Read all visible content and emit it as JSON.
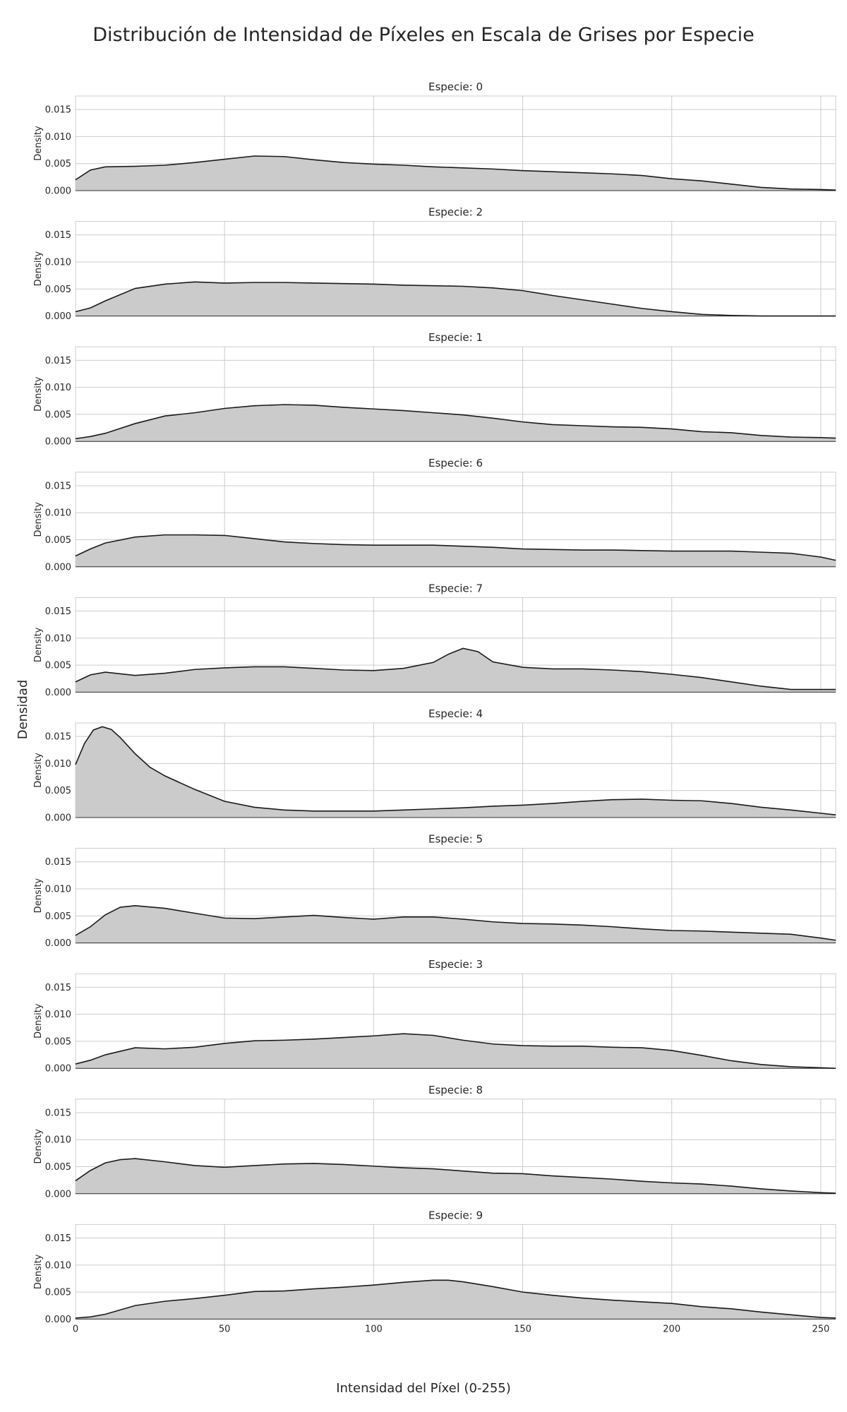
{
  "figure": {
    "title": "Distribución de Intensidad de Píxeles en Escala de Grises por Especie",
    "xlabel": "Intensidad del Píxel (0-255)",
    "ylabel": "Densidad",
    "panel_ylabel": "Density",
    "panel_title_prefix": "Especie: "
  },
  "chart_data": {
    "type": "area",
    "xlim": [
      0,
      255
    ],
    "ylim": [
      0,
      0.0175
    ],
    "x_ticks": [
      0,
      50,
      100,
      150,
      200,
      250
    ],
    "y_ticks": [
      0.0,
      0.005,
      0.01,
      0.015
    ],
    "y_tick_labels": [
      "0.000",
      "0.005",
      "0.010",
      "0.015"
    ],
    "grid": true,
    "fill_color": "#cbcbcb",
    "line_color": "#1a1a1a",
    "series": [
      {
        "species": "0",
        "x": [
          0,
          5,
          10,
          20,
          30,
          40,
          50,
          60,
          70,
          80,
          90,
          100,
          110,
          120,
          130,
          140,
          150,
          160,
          170,
          180,
          190,
          200,
          210,
          220,
          230,
          240,
          250,
          255
        ],
        "y": [
          0.002,
          0.0038,
          0.0044,
          0.0045,
          0.0047,
          0.0052,
          0.0058,
          0.0064,
          0.0063,
          0.0057,
          0.0052,
          0.0049,
          0.0047,
          0.0044,
          0.0042,
          0.004,
          0.0037,
          0.0035,
          0.0033,
          0.0031,
          0.0028,
          0.0022,
          0.0018,
          0.0012,
          0.0006,
          0.0003,
          0.0002,
          0.0001
        ]
      },
      {
        "species": "2",
        "x": [
          0,
          5,
          10,
          20,
          30,
          40,
          50,
          60,
          70,
          80,
          90,
          100,
          110,
          120,
          130,
          140,
          150,
          160,
          170,
          180,
          190,
          200,
          210,
          220,
          230,
          240,
          250,
          255
        ],
        "y": [
          0.0008,
          0.0015,
          0.0028,
          0.0051,
          0.0059,
          0.0063,
          0.0061,
          0.0062,
          0.0062,
          0.0061,
          0.006,
          0.0059,
          0.0057,
          0.0056,
          0.0055,
          0.0052,
          0.0047,
          0.0038,
          0.003,
          0.0022,
          0.0014,
          0.0008,
          0.0003,
          0.0001,
          0.0,
          0.0,
          0.0,
          0.0
        ]
      },
      {
        "species": "1",
        "x": [
          0,
          5,
          10,
          20,
          30,
          40,
          50,
          60,
          70,
          80,
          90,
          100,
          110,
          120,
          130,
          140,
          150,
          160,
          170,
          180,
          190,
          200,
          210,
          220,
          230,
          240,
          250,
          255
        ],
        "y": [
          0.0005,
          0.0009,
          0.0015,
          0.0033,
          0.0047,
          0.0053,
          0.0061,
          0.0066,
          0.0068,
          0.0067,
          0.0063,
          0.006,
          0.0057,
          0.0053,
          0.0049,
          0.0043,
          0.0036,
          0.0031,
          0.0029,
          0.0027,
          0.0026,
          0.0023,
          0.0018,
          0.0016,
          0.0011,
          0.0008,
          0.0007,
          0.0006
        ]
      },
      {
        "species": "6",
        "x": [
          0,
          5,
          10,
          20,
          30,
          40,
          50,
          60,
          70,
          80,
          90,
          100,
          110,
          120,
          130,
          140,
          150,
          160,
          170,
          180,
          190,
          200,
          210,
          220,
          230,
          240,
          250,
          255
        ],
        "y": [
          0.002,
          0.0033,
          0.0044,
          0.0055,
          0.0059,
          0.0059,
          0.0058,
          0.0052,
          0.0046,
          0.0043,
          0.0041,
          0.004,
          0.004,
          0.004,
          0.0038,
          0.0036,
          0.0033,
          0.0032,
          0.0031,
          0.0031,
          0.003,
          0.0029,
          0.0029,
          0.0029,
          0.0027,
          0.0025,
          0.0018,
          0.0012
        ]
      },
      {
        "species": "7",
        "x": [
          0,
          5,
          10,
          20,
          30,
          40,
          50,
          60,
          70,
          80,
          90,
          100,
          110,
          120,
          125,
          130,
          135,
          140,
          150,
          160,
          170,
          180,
          190,
          200,
          210,
          220,
          230,
          240,
          250,
          255
        ],
        "y": [
          0.0019,
          0.0032,
          0.0037,
          0.0031,
          0.0035,
          0.0042,
          0.0045,
          0.0047,
          0.0047,
          0.0044,
          0.0041,
          0.004,
          0.0044,
          0.0055,
          0.007,
          0.0081,
          0.0075,
          0.0056,
          0.0046,
          0.0043,
          0.0043,
          0.0041,
          0.0038,
          0.0033,
          0.0027,
          0.0019,
          0.0011,
          0.0005,
          0.0005,
          0.0005
        ]
      },
      {
        "species": "4",
        "x": [
          0,
          3,
          6,
          9,
          12,
          15,
          20,
          25,
          30,
          40,
          50,
          60,
          70,
          80,
          90,
          100,
          110,
          120,
          130,
          140,
          150,
          160,
          170,
          180,
          190,
          200,
          210,
          220,
          230,
          240,
          250,
          255
        ],
        "y": [
          0.0098,
          0.0137,
          0.0162,
          0.0168,
          0.0163,
          0.0148,
          0.0118,
          0.0093,
          0.0077,
          0.0052,
          0.003,
          0.0019,
          0.0014,
          0.0012,
          0.0012,
          0.0012,
          0.0014,
          0.0016,
          0.0018,
          0.0021,
          0.0023,
          0.0026,
          0.003,
          0.0033,
          0.0034,
          0.0032,
          0.0031,
          0.0026,
          0.0019,
          0.0014,
          0.0008,
          0.0005
        ]
      },
      {
        "species": "5",
        "x": [
          0,
          5,
          10,
          15,
          20,
          30,
          40,
          50,
          60,
          70,
          80,
          90,
          100,
          110,
          120,
          130,
          140,
          150,
          160,
          170,
          180,
          190,
          200,
          210,
          220,
          230,
          240,
          250,
          255
        ],
        "y": [
          0.0014,
          0.003,
          0.0052,
          0.0066,
          0.0069,
          0.0064,
          0.0055,
          0.0046,
          0.0045,
          0.0048,
          0.0051,
          0.0047,
          0.0044,
          0.0048,
          0.0048,
          0.0044,
          0.0039,
          0.0036,
          0.0035,
          0.0033,
          0.003,
          0.0026,
          0.0023,
          0.0022,
          0.002,
          0.0018,
          0.0016,
          0.0009,
          0.0005
        ]
      },
      {
        "species": "3",
        "x": [
          0,
          5,
          10,
          20,
          30,
          40,
          50,
          60,
          70,
          80,
          90,
          100,
          110,
          120,
          130,
          140,
          150,
          160,
          170,
          180,
          190,
          200,
          210,
          220,
          230,
          240,
          250,
          255
        ],
        "y": [
          0.0008,
          0.0015,
          0.0025,
          0.0038,
          0.0036,
          0.0039,
          0.0046,
          0.0051,
          0.0052,
          0.0054,
          0.0057,
          0.006,
          0.0064,
          0.0061,
          0.0052,
          0.0045,
          0.0042,
          0.0041,
          0.0041,
          0.0039,
          0.0038,
          0.0033,
          0.0024,
          0.0014,
          0.0007,
          0.0003,
          0.0001,
          0.0
        ]
      },
      {
        "species": "8",
        "x": [
          0,
          5,
          10,
          15,
          20,
          30,
          40,
          50,
          60,
          70,
          80,
          90,
          100,
          110,
          120,
          130,
          140,
          150,
          160,
          170,
          180,
          190,
          200,
          210,
          220,
          230,
          240,
          250,
          255
        ],
        "y": [
          0.0024,
          0.0043,
          0.0057,
          0.0063,
          0.0065,
          0.0059,
          0.0052,
          0.0049,
          0.0052,
          0.0055,
          0.0056,
          0.0054,
          0.0051,
          0.0048,
          0.0046,
          0.0042,
          0.0038,
          0.0037,
          0.0033,
          0.003,
          0.0027,
          0.0023,
          0.002,
          0.0018,
          0.0014,
          0.0009,
          0.0005,
          0.0002,
          0.0001
        ]
      },
      {
        "species": "9",
        "x": [
          0,
          5,
          10,
          20,
          30,
          40,
          50,
          60,
          70,
          80,
          90,
          100,
          110,
          120,
          125,
          130,
          140,
          150,
          160,
          170,
          180,
          190,
          200,
          210,
          220,
          230,
          240,
          250,
          255
        ],
        "y": [
          0.0002,
          0.0004,
          0.0009,
          0.0025,
          0.0033,
          0.0038,
          0.0044,
          0.0051,
          0.0052,
          0.0056,
          0.0059,
          0.0063,
          0.0068,
          0.0072,
          0.0072,
          0.0069,
          0.006,
          0.005,
          0.0044,
          0.0039,
          0.0035,
          0.0032,
          0.0029,
          0.0023,
          0.0019,
          0.0013,
          0.0008,
          0.0003,
          0.0002
        ]
      }
    ]
  }
}
